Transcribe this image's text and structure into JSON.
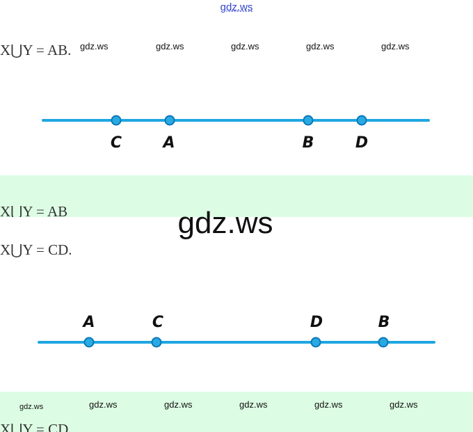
{
  "header": {
    "watermark": "gdz.ws"
  },
  "watermarks_top": [
    "gdz.ws",
    "gdz.ws",
    "gdz.ws",
    "gdz.ws",
    "gdz.ws"
  ],
  "section1": {
    "formula": "X⋃Y = AB.",
    "points": [
      "C",
      "A",
      "B",
      "D"
    ],
    "formula_repeat": "X⋃Y = AB"
  },
  "big_watermark": "gdz.ws",
  "section2": {
    "formula": "X⋃Y = CD.",
    "points": [
      "A",
      "C",
      "D",
      "B"
    ],
    "formula_repeat": "X⋃Y = CD"
  },
  "watermarks_bottom": [
    "gdz.ws",
    "gdz.ws",
    "gdz.ws",
    "gdz.ws",
    "gdz.ws",
    "gdz.ws"
  ]
}
